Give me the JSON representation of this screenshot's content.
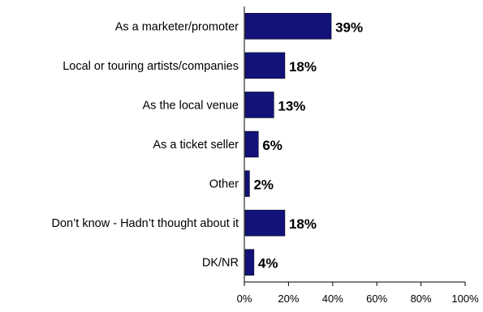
{
  "chart_data": {
    "type": "bar",
    "orientation": "horizontal",
    "categories": [
      "As a marketer/promoter",
      "Local or touring artists/companies",
      "As the local venue",
      "As a ticket seller",
      "Other",
      "Don’t know - Hadn’t thought about it",
      "DK/NR"
    ],
    "values": [
      39,
      18,
      13,
      6,
      2,
      18,
      4
    ],
    "data_labels": [
      "39%",
      "18%",
      "13%",
      "6%",
      "2%",
      "18%",
      "4%"
    ],
    "x_ticks": [
      0,
      20,
      40,
      60,
      80,
      100
    ],
    "x_tick_labels": [
      "0%",
      "20%",
      "40%",
      "60%",
      "80%",
      "100%"
    ],
    "xlim": [
      0,
      100
    ],
    "bar_color": "#12127a",
    "grid": false,
    "legend": false
  }
}
